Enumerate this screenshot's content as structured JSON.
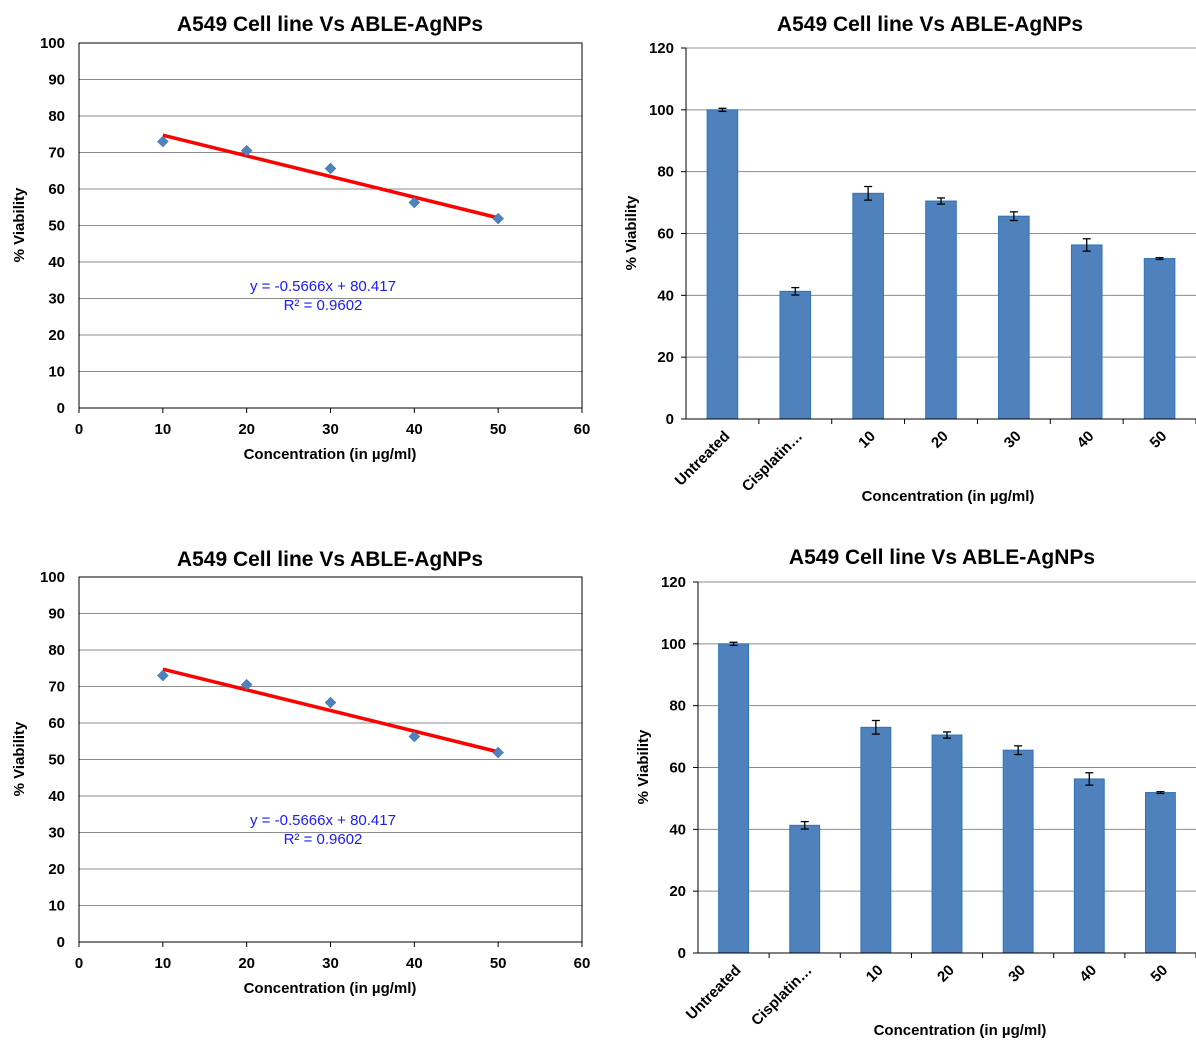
{
  "chart_data": [
    {
      "type": "scatter",
      "title": "A549 Cell line Vs ABLE-AgNPs",
      "xlabel": "Concentration (in µg/ml)",
      "ylabel": "% Viability",
      "xlim": [
        0,
        60
      ],
      "ylim": [
        0,
        100
      ],
      "xticks": [
        "0",
        "10",
        "20",
        "30",
        "40",
        "50",
        "60"
      ],
      "yticks": [
        "0",
        "10",
        "20",
        "30",
        "40",
        "50",
        "60",
        "70",
        "80",
        "90",
        "100"
      ],
      "x": [
        10,
        20,
        30,
        40,
        50
      ],
      "y": [
        73.0,
        70.5,
        65.6,
        56.3,
        51.9
      ],
      "trendline": {
        "slope": -0.5666,
        "intercept": 80.417,
        "x_range": [
          10,
          50
        ]
      },
      "equation": "y = -0.5666x + 80.417",
      "r_squared": "R² = 0.9602",
      "grid": true,
      "colors": {
        "points": "#4f81bd",
        "trendline": "#ff0000",
        "equation": "#1a1aff"
      }
    },
    {
      "type": "bar",
      "title": "A549 Cell line Vs ABLE-AgNPs",
      "xlabel": "Concentration (in µg/ml)",
      "ylabel": "% Viability",
      "ylim": [
        0,
        120
      ],
      "yticks": [
        "0",
        "20",
        "40",
        "60",
        "80",
        "100",
        "120"
      ],
      "categories": [
        "Untreated",
        "Cisplatin…",
        "10",
        "20",
        "30",
        "40",
        "50"
      ],
      "values": [
        100,
        41.3,
        73.0,
        70.5,
        65.6,
        56.3,
        51.9
      ],
      "errors": [
        0.5,
        1.2,
        2.2,
        1.0,
        1.4,
        2.0,
        0.3
      ],
      "grid": true,
      "colors": {
        "bar": "#4f81bd",
        "bar_edge": "#2e75b6"
      }
    },
    {
      "type": "scatter",
      "title": "A549 Cell line Vs ABLE-AgNPs",
      "xlabel": "Concentration (in µg/ml)",
      "ylabel": "% Viability",
      "xlim": [
        0,
        60
      ],
      "ylim": [
        0,
        100
      ],
      "xticks": [
        "0",
        "10",
        "20",
        "30",
        "40",
        "50",
        "60"
      ],
      "yticks": [
        "0",
        "10",
        "20",
        "30",
        "40",
        "50",
        "60",
        "70",
        "80",
        "90",
        "100"
      ],
      "x": [
        10,
        20,
        30,
        40,
        50
      ],
      "y": [
        73.0,
        70.5,
        65.6,
        56.3,
        51.9
      ],
      "trendline": {
        "slope": -0.5666,
        "intercept": 80.417,
        "x_range": [
          10,
          50
        ]
      },
      "equation": "y = -0.5666x + 80.417",
      "r_squared": "R² = 0.9602",
      "grid": true,
      "colors": {
        "points": "#4f81bd",
        "trendline": "#ff0000",
        "equation": "#1a1aff"
      }
    },
    {
      "type": "bar",
      "title": "A549 Cell line Vs ABLE-AgNPs",
      "xlabel": "Concentration (in µg/ml)",
      "ylabel": "% Viability",
      "ylim": [
        0,
        120
      ],
      "yticks": [
        "0",
        "20",
        "40",
        "60",
        "80",
        "100",
        "120"
      ],
      "categories": [
        "Untreated",
        "Cisplatin…",
        "10",
        "20",
        "30",
        "40",
        "50"
      ],
      "values": [
        100,
        41.3,
        73.0,
        70.5,
        65.6,
        56.3,
        51.9
      ],
      "errors": [
        0.5,
        1.2,
        2.2,
        1.0,
        1.4,
        2.0,
        0.3
      ],
      "grid": true,
      "colors": {
        "bar": "#4f81bd",
        "bar_edge": "#2e75b6"
      }
    }
  ]
}
